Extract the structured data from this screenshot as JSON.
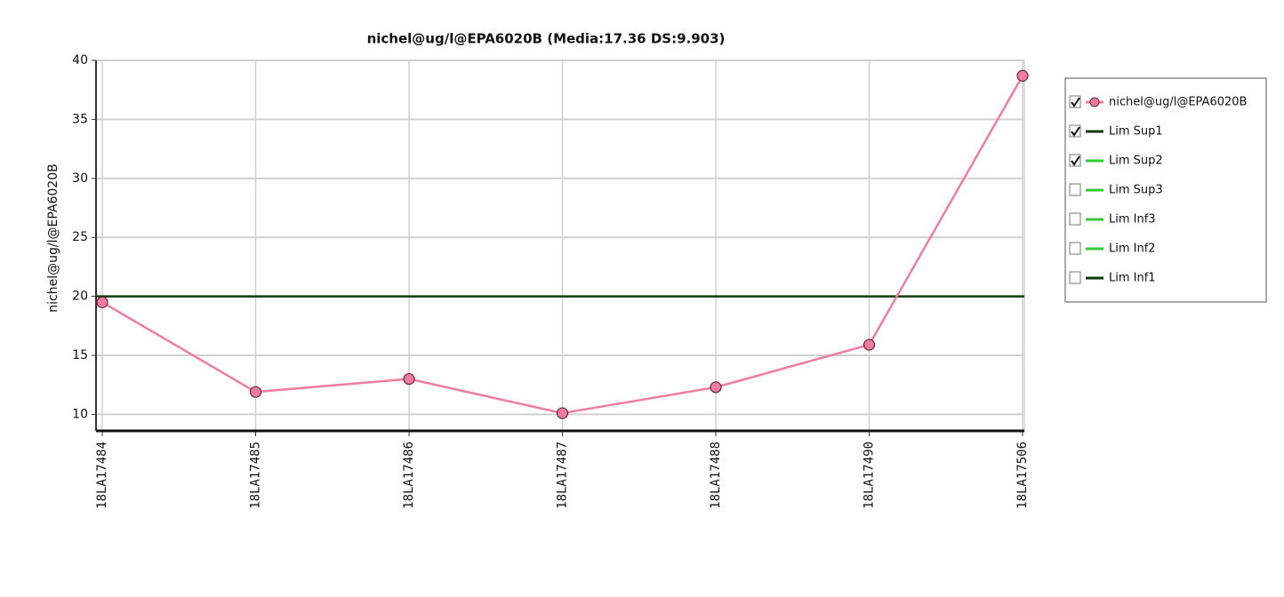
{
  "chart_data": {
    "type": "line",
    "title": "nichel@ug/l@EPA6020B (Media:17.36 DS:9.903)",
    "y_label": "nichel@ug/l@EPA6020B",
    "categories": [
      "18LA17484",
      "18LA17485",
      "18LA17486",
      "18LA17487",
      "18LA17488",
      "18LA17490",
      "18LA17506"
    ],
    "series": [
      {
        "name": "nichel@ug/l@EPA6020B",
        "color": "#f07ca0",
        "values": [
          19.5,
          11.9,
          13.0,
          10.1,
          12.3,
          15.9,
          38.7
        ],
        "checked": true
      }
    ],
    "limits": [
      {
        "name": "Lim Sup1",
        "color": "#0f3a0f",
        "value": 20,
        "checked": true
      },
      {
        "name": "Lim Sup2",
        "color": "#33cc33",
        "checked": true
      },
      {
        "name": "Lim Sup3",
        "color": "#33cc33",
        "checked": false
      },
      {
        "name": "Lim Inf3",
        "color": "#33cc33",
        "checked": false
      },
      {
        "name": "Lim Inf2",
        "color": "#33cc33",
        "checked": false
      },
      {
        "name": "Lim Inf1",
        "color": "#0f3a0f",
        "checked": false
      }
    ],
    "ylim": [
      8.6,
      40
    ],
    "yticks": [
      10,
      15,
      20,
      25,
      30,
      35,
      40
    ],
    "grid": true,
    "legend": "right"
  }
}
